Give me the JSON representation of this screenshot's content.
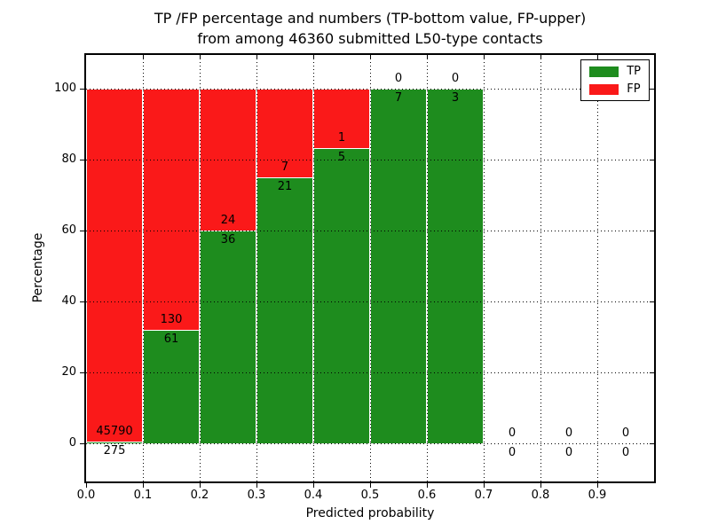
{
  "figure": {
    "title_line1": "TP /FP percentage and numbers (TP-bottom value, FP-upper)",
    "title_line2": "from among 46360 submitted L50-type contacts"
  },
  "axes": {
    "xlabel": "Predicted probability",
    "ylabel": "Percentage",
    "x_tick_labels": [
      "0.0",
      "0.1",
      "0.2",
      "0.3",
      "0.4",
      "0.5",
      "0.6",
      "0.7",
      "0.8",
      "0.9"
    ],
    "y_tick_labels": [
      "0",
      "20",
      "40",
      "60",
      "80",
      "100"
    ]
  },
  "legend": {
    "items": [
      {
        "label": "TP",
        "color": "#1e8c1e"
      },
      {
        "label": "FP",
        "color": "#fa1919"
      }
    ]
  },
  "chart_data": {
    "type": "bar",
    "stacked": true,
    "title": "TP /FP percentage and numbers (TP-bottom value, FP-upper) from among 46360 submitted L50-type contacts",
    "xlabel": "Predicted probability",
    "ylabel": "Percentage",
    "xlim": [
      0.0,
      1.0
    ],
    "ylim": [
      -10.75,
      109.5
    ],
    "x_ticks": [
      0.0,
      0.1,
      0.2,
      0.3,
      0.4,
      0.5,
      0.6,
      0.7,
      0.8,
      0.9
    ],
    "y_ticks": [
      0,
      20,
      40,
      60,
      80,
      100
    ],
    "grid": true,
    "grid_style": "dotted",
    "legend_position": "upper right",
    "total_contacts": 46360,
    "series": [
      {
        "name": "TP",
        "color": "#1e8c1e"
      },
      {
        "name": "FP",
        "color": "#fa1919"
      }
    ],
    "bins": [
      {
        "range": [
          0.0,
          0.1
        ],
        "tp": 275,
        "fp": 45790,
        "tp_percent": 0.6,
        "fp_percent": 99.4
      },
      {
        "range": [
          0.1,
          0.2
        ],
        "tp": 61,
        "fp": 130,
        "tp_percent": 31.9,
        "fp_percent": 68.1
      },
      {
        "range": [
          0.2,
          0.3
        ],
        "tp": 36,
        "fp": 24,
        "tp_percent": 60.0,
        "fp_percent": 40.0
      },
      {
        "range": [
          0.3,
          0.4
        ],
        "tp": 21,
        "fp": 7,
        "tp_percent": 75.0,
        "fp_percent": 25.0
      },
      {
        "range": [
          0.4,
          0.5
        ],
        "tp": 5,
        "fp": 1,
        "tp_percent": 83.3,
        "fp_percent": 16.7
      },
      {
        "range": [
          0.5,
          0.6
        ],
        "tp": 7,
        "fp": 0,
        "tp_percent": 100.0,
        "fp_percent": 0.0
      },
      {
        "range": [
          0.6,
          0.7
        ],
        "tp": 3,
        "fp": 0,
        "tp_percent": 100.0,
        "fp_percent": 0.0
      },
      {
        "range": [
          0.7,
          0.8
        ],
        "tp": 0,
        "fp": 0,
        "tp_percent": 0.0,
        "fp_percent": 0.0
      },
      {
        "range": [
          0.8,
          0.9
        ],
        "tp": 0,
        "fp": 0,
        "tp_percent": 0.0,
        "fp_percent": 0.0
      },
      {
        "range": [
          0.9,
          1.0
        ],
        "tp": 0,
        "fp": 0,
        "tp_percent": 0.0,
        "fp_percent": 0.0
      }
    ]
  }
}
